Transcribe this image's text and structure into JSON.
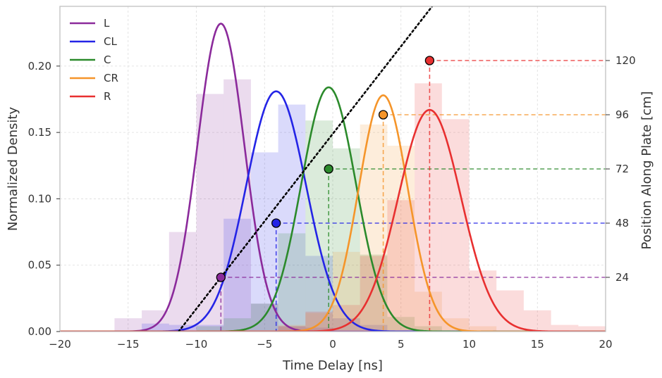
{
  "chart_data": {
    "type": "area",
    "xlabel": "Time Delay [ns]",
    "ylabel": "Normalized Density",
    "y2label": "Position Along Plate [cm]",
    "xlim": [
      -20,
      20
    ],
    "ylim": [
      0,
      0.245
    ],
    "y2lim": [
      0,
      144
    ],
    "xticks": [
      -20,
      -15,
      -10,
      -5,
      0,
      5,
      10,
      15,
      20
    ],
    "xtick_labels": [
      "−20",
      "−15",
      "−10",
      "−5",
      "0",
      "5",
      "10",
      "15",
      "20"
    ],
    "yticks": [
      0.0,
      0.05,
      0.1,
      0.15,
      0.2
    ],
    "ytick_labels": [
      "0.00",
      "0.05",
      "0.10",
      "0.15",
      "0.20"
    ],
    "y2ticks": [
      24,
      48,
      72,
      96,
      120
    ],
    "y2tick_labels": [
      "24",
      "48",
      "72",
      "96",
      "120"
    ],
    "grid": true,
    "legend": "top-left",
    "bin_width": 2,
    "series": [
      {
        "name": "L",
        "color": "#8b2a9b",
        "gaussian": {
          "mean": -8.2,
          "sigma": 1.72,
          "peak": 0.232
        },
        "position_cm": 24,
        "histogram": {
          "bin_starts": [
            -16,
            -14,
            -12,
            -10,
            -8,
            -6,
            -4,
            -2
          ],
          "values": [
            0.01,
            0.016,
            0.075,
            0.179,
            0.19,
            0.021,
            0.004,
            0.003
          ]
        }
      },
      {
        "name": "CL",
        "color": "#2424e6",
        "gaussian": {
          "mean": -4.15,
          "sigma": 2.2,
          "peak": 0.181
        },
        "position_cm": 48,
        "histogram": {
          "bin_starts": [
            -14,
            -12,
            -10,
            -8,
            -6,
            -4,
            -2,
            0,
            2
          ],
          "values": [
            0.006,
            0.005,
            0.005,
            0.085,
            0.135,
            0.171,
            0.057,
            0.01,
            0.005
          ]
        }
      },
      {
        "name": "C",
        "color": "#2b8a2b",
        "gaussian": {
          "mean": -0.3,
          "sigma": 2.0,
          "peak": 0.184
        },
        "position_cm": 72,
        "histogram": {
          "bin_starts": [
            -10,
            -8,
            -6,
            -4,
            -2,
            0,
            2,
            4,
            6
          ],
          "values": [
            0.004,
            0.01,
            0.021,
            0.074,
            0.159,
            0.138,
            0.058,
            0.011,
            0.004
          ]
        }
      },
      {
        "name": "CR",
        "color": "#f5952a",
        "gaussian": {
          "mean": 3.7,
          "sigma": 1.8,
          "peak": 0.178
        },
        "position_cm": 96,
        "histogram": {
          "bin_starts": [
            -4,
            -2,
            0,
            2,
            4,
            6,
            8,
            10
          ],
          "values": [
            0.005,
            0.014,
            0.06,
            0.156,
            0.14,
            0.03,
            0.01,
            0.004
          ]
        }
      },
      {
        "name": "R",
        "color": "#e83030",
        "gaussian": {
          "mean": 7.1,
          "sigma": 2.3,
          "peak": 0.167
        },
        "position_cm": 120,
        "histogram": {
          "bin_starts": [
            -4,
            -2,
            0,
            2,
            4,
            6,
            8,
            10,
            12,
            14,
            16,
            18
          ],
          "values": [
            0.004,
            0.015,
            0.02,
            0.057,
            0.099,
            0.187,
            0.16,
            0.046,
            0.031,
            0.016,
            0.005,
            0.004
          ]
        }
      }
    ],
    "fit_line": {
      "style": "dotted",
      "color": "#000000",
      "x": [
        -11.3,
        10.9
      ],
      "y2": [
        0,
        172
      ]
    }
  }
}
